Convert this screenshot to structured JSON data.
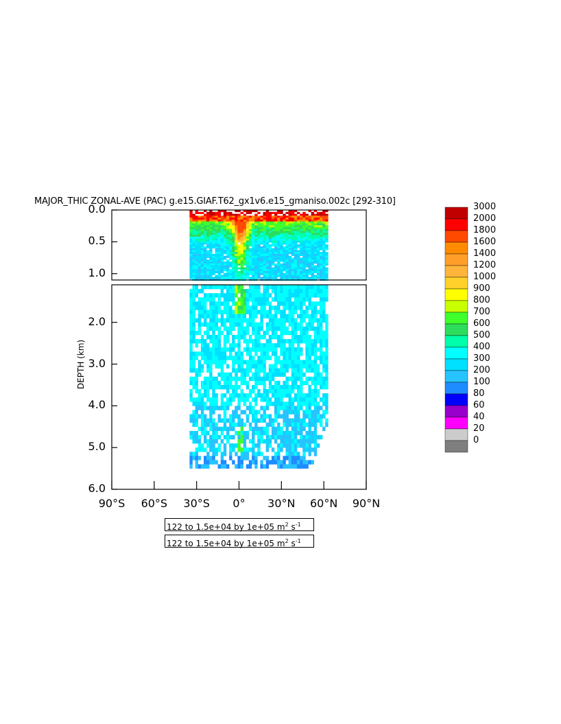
{
  "chart_data": {
    "type": "heatmap",
    "title": "MAJOR_THIC ZONAL-AVE (PAC) g.e15.GIAF.T62_gx1v6.e15_gmaniso.002c [292-310]",
    "ylabel": "DEPTH (km)",
    "xlabel": "",
    "x_ticks": [
      "90°S",
      "60°S",
      "30°S",
      "0°",
      "30°N",
      "60°N",
      "90°N"
    ],
    "y_ticks_upper": [
      "0.0",
      "0.5",
      "1.0"
    ],
    "y_ticks_lower": [
      "2.0",
      "3.0",
      "4.0",
      "5.0",
      "6.0"
    ],
    "xlim": [
      -90,
      90
    ],
    "ylim_upper": [
      0,
      1.1
    ],
    "ylim_lower": [
      1.1,
      6.0
    ],
    "data_extent": {
      "lat": [
        -35,
        63
      ],
      "depth_max": 5.4
    },
    "contour_info": [
      "122 to 1.5e+04 by 1e+05",
      "122 to 1.5e+04 by 1e+05"
    ],
    "units_text": "m",
    "units_sup1": "2",
    "units_mid": " s",
    "units_sup2": "-1",
    "colorbar": {
      "levels": [
        "3000",
        "2000",
        "1800",
        "1600",
        "1400",
        "1200",
        "1000",
        "900",
        "800",
        "700",
        "600",
        "500",
        "400",
        "300",
        "200",
        "100",
        "80",
        "60",
        "40",
        "20",
        "0"
      ],
      "colors": [
        "#c00000",
        "#ff0000",
        "#ff4a00",
        "#ff8c00",
        "#ff9f2a",
        "#ffb43c",
        "#ffd12a",
        "#ffff00",
        "#c8ff00",
        "#3fff2d",
        "#2ddc5a",
        "#00ffaa",
        "#00ffff",
        "#00e0ff",
        "#27c3ff",
        "#1e8cff",
        "#0000ff",
        "#9900cc",
        "#ff00ff",
        "#cccccc",
        "#7f7f7f"
      ]
    }
  }
}
